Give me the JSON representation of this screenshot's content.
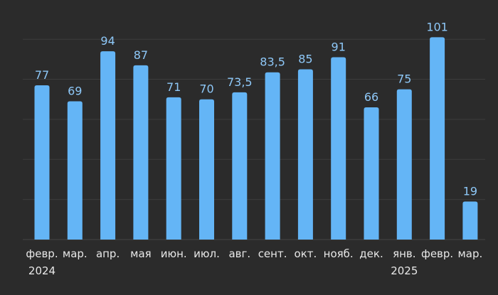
{
  "chart_data": {
    "type": "bar",
    "categories": [
      "февр.",
      "мар.",
      "апр.",
      "мая",
      "июн.",
      "июл.",
      "авг.",
      "сент.",
      "окт.",
      "нояб.",
      "дек.",
      "янв.",
      "февр.",
      "мар."
    ],
    "values": [
      77,
      69,
      94,
      87,
      71,
      70,
      73.5,
      83.5,
      85,
      91,
      66,
      75,
      101,
      19
    ],
    "value_labels": [
      "77",
      "69",
      "94",
      "87",
      "71",
      "70",
      "73,5",
      "83,5",
      "85",
      "91",
      "66",
      "75",
      "101",
      "19"
    ],
    "year_labels": [
      {
        "index": 0,
        "label": "2024"
      },
      {
        "index": 11,
        "label": "2025"
      }
    ],
    "title": "",
    "xlabel": "",
    "ylabel": "",
    "ylim": [
      0,
      100
    ],
    "grid": true,
    "colors": {
      "bar": "#64b5f6",
      "value_label": "#8ec8f8",
      "tick_label": "#e8e8e8",
      "grid": "#3c3c3c",
      "background": "#2b2b2b"
    }
  }
}
